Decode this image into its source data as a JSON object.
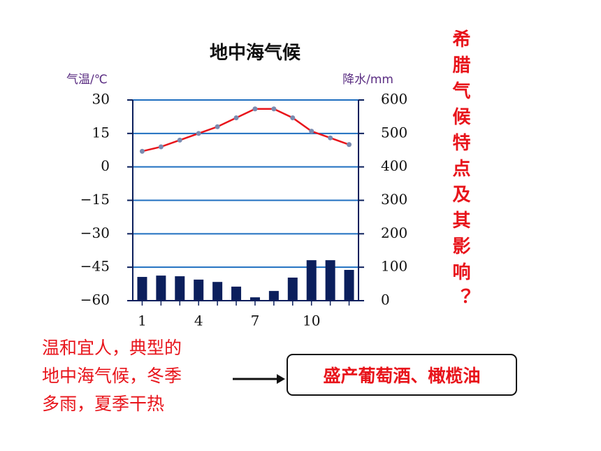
{
  "chart_data": {
    "type": "combo",
    "title": "地中海气候",
    "y_label": "气温/℃",
    "y2_label": "降水/mm",
    "categories": [
      "1",
      null,
      null,
      "4",
      null,
      null,
      "7",
      null,
      null,
      "10",
      null,
      null
    ],
    "series": [
      {
        "name": "气温",
        "type": "line",
        "color": "#e8141b",
        "marker_color": "#7a8bb0",
        "values": [
          7,
          9,
          12,
          15,
          18,
          22,
          26,
          26,
          22,
          16,
          13,
          10
        ]
      },
      {
        "name": "降水",
        "type": "bar",
        "axis": "y2",
        "color": "#0b1f5c",
        "values": [
          71,
          75,
          73,
          63,
          56,
          42,
          10,
          29,
          69,
          121,
          121,
          92
        ]
      }
    ],
    "ylim": [
      -60,
      30
    ],
    "yticks": [
      {
        "value": -60,
        "label": "−60"
      },
      {
        "value": -45,
        "label": "−45"
      },
      {
        "value": -30,
        "label": "−30"
      },
      {
        "value": -15,
        "label": "−15"
      },
      0,
      15,
      30
    ],
    "y2lim": [
      0,
      600
    ],
    "y2ticks": [
      0,
      100,
      200,
      300,
      400,
      500,
      600
    ],
    "grid": true,
    "grid_color": "#1f6fc0"
  },
  "side_question": "希腊气候特点及其影响？",
  "description": [
    "温和宜人，典型的",
    "地中海气候，冬季",
    "多雨，夏季干热"
  ],
  "result": "盛产葡萄酒、橄榄油"
}
